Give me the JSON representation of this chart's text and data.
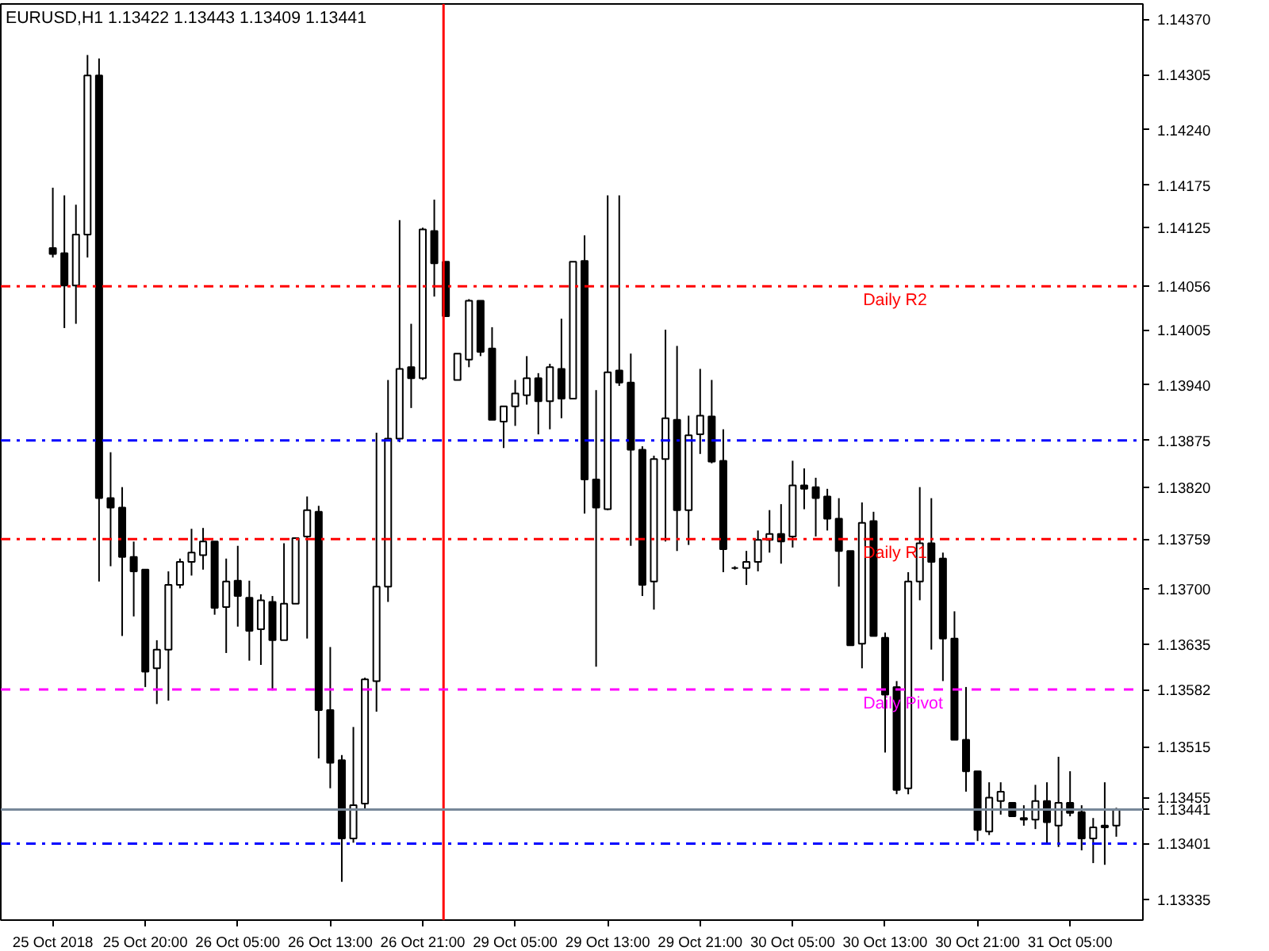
{
  "chart_data": {
    "type": "candlestick",
    "title": "EURUSD,H1  1.13422 1.13443 1.13409 1.13441",
    "categories": [
      "25 Oct 2018",
      null,
      null,
      null,
      null,
      null,
      null,
      null,
      "25 Oct 20:00",
      null,
      null,
      null,
      null,
      null,
      null,
      null,
      "26 Oct 05:00",
      null,
      null,
      null,
      null,
      null,
      null,
      null,
      "26 Oct 13:00",
      null,
      null,
      null,
      null,
      null,
      null,
      null,
      "26 Oct 21:00",
      null,
      null,
      null,
      null,
      null,
      null,
      null,
      "29 Oct 05:00",
      null,
      null,
      null,
      null,
      null,
      null,
      null,
      "29 Oct 13:00",
      null,
      null,
      null,
      null,
      null,
      null,
      null,
      "29 Oct 21:00",
      null,
      null,
      null,
      null,
      null,
      null,
      null,
      "30 Oct 05:00",
      null,
      null,
      null,
      null,
      null,
      null,
      null,
      "30 Oct 13:00",
      null,
      null,
      null,
      null,
      null,
      null,
      null,
      "30 Oct 21:00",
      null,
      null,
      null,
      null,
      null,
      null,
      null,
      "31 Oct 05:00",
      null,
      null,
      null,
      null
    ],
    "ohlc": [
      [
        1.14101,
        1.14172,
        1.1409,
        1.14094
      ],
      [
        1.14095,
        1.14163,
        1.14007,
        1.14057
      ],
      [
        1.14057,
        1.14152,
        1.14012,
        1.14117
      ],
      [
        1.14117,
        1.14328,
        1.1409,
        1.14304
      ],
      [
        1.14304,
        1.14324,
        1.13709,
        1.13807
      ],
      [
        1.13807,
        1.13861,
        1.13727,
        1.13796
      ],
      [
        1.13796,
        1.1382,
        1.13645,
        1.13738
      ],
      [
        1.13738,
        1.13756,
        1.13668,
        1.13721
      ],
      [
        1.13723,
        1.13723,
        1.13585,
        1.13603
      ],
      [
        1.13607,
        1.1364,
        1.13565,
        1.13629
      ],
      [
        1.13629,
        1.13721,
        1.13569,
        1.13705
      ],
      [
        1.13705,
        1.13736,
        1.13701,
        1.13732
      ],
      [
        1.13732,
        1.13771,
        1.13716,
        1.13743
      ],
      [
        1.1374,
        1.13772,
        1.13723,
        1.13756
      ],
      [
        1.13756,
        1.13756,
        1.1367,
        1.13678
      ],
      [
        1.13679,
        1.13736,
        1.13625,
        1.13709
      ],
      [
        1.1371,
        1.13751,
        1.13656,
        1.13692
      ],
      [
        1.1369,
        1.1371,
        1.13616,
        1.13651
      ],
      [
        1.13653,
        1.13694,
        1.13611,
        1.13687
      ],
      [
        1.13685,
        1.13692,
        1.13581,
        1.1364
      ],
      [
        1.1364,
        1.13754,
        1.1364,
        1.13683
      ],
      [
        1.13683,
        1.1376,
        1.13683,
        1.1376
      ],
      [
        1.13762,
        1.13809,
        1.13642,
        1.13793
      ],
      [
        1.13791,
        1.13798,
        1.13501,
        1.13558
      ],
      [
        1.13558,
        1.13632,
        1.13466,
        1.13496
      ],
      [
        1.13499,
        1.13505,
        1.13356,
        1.13407
      ],
      [
        1.13407,
        1.13538,
        1.13402,
        1.13446
      ],
      [
        1.13448,
        1.13596,
        1.13442,
        1.13594
      ],
      [
        1.13592,
        1.13884,
        1.13556,
        1.13703
      ],
      [
        1.13703,
        1.13946,
        1.13685,
        1.13877
      ],
      [
        1.13877,
        1.14134,
        1.13873,
        1.13959
      ],
      [
        1.13961,
        1.14012,
        1.13913,
        1.13948
      ],
      [
        1.13948,
        1.14125,
        1.13946,
        1.14123
      ],
      [
        1.14121,
        1.14158,
        1.14044,
        1.14083
      ],
      [
        1.14085,
        1.14085,
        1.14021,
        1.14021
      ],
      [
        1.13946,
        1.13977,
        1.13946,
        1.13977
      ],
      [
        1.1397,
        1.14041,
        1.13961,
        1.14039
      ],
      [
        1.14039,
        1.14039,
        1.13974,
        1.13979
      ],
      [
        1.13983,
        1.14008,
        1.13899,
        1.13899
      ],
      [
        1.13897,
        1.13915,
        1.13866,
        1.13915
      ],
      [
        1.13915,
        1.13946,
        1.13892,
        1.1393
      ],
      [
        1.13928,
        1.13974,
        1.13917,
        1.13948
      ],
      [
        1.13948,
        1.13954,
        1.13882,
        1.13921
      ],
      [
        1.13921,
        1.13965,
        1.13888,
        1.13961
      ],
      [
        1.13959,
        1.14018,
        1.13901,
        1.13924
      ],
      [
        1.13924,
        1.14085,
        1.13924,
        1.14085
      ],
      [
        1.14086,
        1.14116,
        1.13789,
        1.13829
      ],
      [
        1.13829,
        1.13934,
        1.13609,
        1.13796
      ],
      [
        1.13794,
        1.14163,
        1.13793,
        1.13955
      ],
      [
        1.13957,
        1.14163,
        1.13939,
        1.13943
      ],
      [
        1.13943,
        1.13977,
        1.13751,
        1.13864
      ],
      [
        1.13864,
        1.13868,
        1.13692,
        1.13705
      ],
      [
        1.13709,
        1.13857,
        1.13676,
        1.13853
      ],
      [
        1.13853,
        1.14005,
        1.13756,
        1.13901
      ],
      [
        1.13899,
        1.13986,
        1.13745,
        1.13793
      ],
      [
        1.13793,
        1.13904,
        1.13752,
        1.13881
      ],
      [
        1.13882,
        1.13959,
        1.13859,
        1.13904
      ],
      [
        1.13903,
        1.13946,
        1.13848,
        1.1385
      ],
      [
        1.13851,
        1.13888,
        1.1372,
        1.13747
      ],
      [
        1.13725,
        1.13727,
        1.13723,
        1.13725
      ],
      [
        1.13725,
        1.13745,
        1.13705,
        1.13732
      ],
      [
        1.13732,
        1.13769,
        1.13721,
        1.13758
      ],
      [
        1.13758,
        1.13793,
        1.13743,
        1.13765
      ],
      [
        1.13765,
        1.138,
        1.1373,
        1.13756
      ],
      [
        1.13762,
        1.13851,
        1.13749,
        1.13822
      ],
      [
        1.13822,
        1.13842,
        1.13794,
        1.13818
      ],
      [
        1.1382,
        1.13831,
        1.13762,
        1.13807
      ],
      [
        1.13809,
        1.13818,
        1.13769,
        1.13783
      ],
      [
        1.13783,
        1.13807,
        1.13703,
        1.13745
      ],
      [
        1.13745,
        1.13745,
        1.13634,
        1.13634
      ],
      [
        1.13636,
        1.13802,
        1.13607,
        1.13778
      ],
      [
        1.1378,
        1.13791,
        1.13645,
        1.13645
      ],
      [
        1.13643,
        1.13649,
        1.13508,
        1.13576
      ],
      [
        1.13585,
        1.13592,
        1.13459,
        1.13464
      ],
      [
        1.13466,
        1.1372,
        1.13459,
        1.13709
      ],
      [
        1.13709,
        1.1382,
        1.13687,
        1.13754
      ],
      [
        1.13754,
        1.13807,
        1.13629,
        1.13732
      ],
      [
        1.13736,
        1.13743,
        1.13592,
        1.13642
      ],
      [
        1.13642,
        1.13674,
        1.13523,
        1.13523
      ],
      [
        1.13523,
        1.13585,
        1.13462,
        1.13486
      ],
      [
        1.13486,
        1.13486,
        1.13404,
        1.13417
      ],
      [
        1.13415,
        1.13473,
        1.13411,
        1.13455
      ],
      [
        1.13451,
        1.13473,
        1.13435,
        1.13462
      ],
      [
        1.13449,
        1.13449,
        1.13433,
        1.13433
      ],
      [
        1.13431,
        1.13446,
        1.13422,
        1.13429
      ],
      [
        1.13429,
        1.1347,
        1.13418,
        1.13451
      ],
      [
        1.13451,
        1.13473,
        1.13402,
        1.13426
      ],
      [
        1.13422,
        1.13503,
        1.13397,
        1.13449
      ],
      [
        1.13449,
        1.13486,
        1.13433,
        1.13437
      ],
      [
        1.13438,
        1.13446,
        1.13393,
        1.13407
      ],
      [
        1.13407,
        1.13431,
        1.13378,
        1.1342
      ],
      [
        1.13422,
        1.13473,
        1.13376,
        1.1342
      ],
      [
        1.13422,
        1.13443,
        1.13409,
        1.13441
      ]
    ],
    "ylim": [
      1.13311,
      1.14388
    ],
    "yticks": [
      {
        "value": 1.1437,
        "label": "1.14370"
      },
      1.14305,
      {
        "value": 1.1424,
        "label": "1.14240"
      },
      1.14175,
      1.14125,
      {
        "value": 1.14056,
        "label": "1.14056"
      },
      1.14005,
      {
        "value": 1.1394,
        "label": "1.13940"
      },
      {
        "value": 1.13875,
        "label": "1.13875"
      },
      {
        "value": 1.1382,
        "label": "1.13820"
      },
      {
        "value": 1.13759,
        "label": "1.13759"
      },
      {
        "value": 1.137,
        "label": "1.13700"
      },
      1.13635,
      {
        "value": 1.13582,
        "label": "1.13582"
      },
      1.13515,
      1.13455,
      {
        "value": 1.13441,
        "label": "1.13441"
      },
      {
        "value": 1.13401,
        "label": "1.13401"
      },
      1.13335
    ],
    "grid": false,
    "ref_lines": [
      {
        "axis": "y",
        "value": 1.14056,
        "label": "Daily R2",
        "color": "#ff0000",
        "line_style": "dashdot"
      },
      {
        "axis": "y",
        "value": 1.13875,
        "color": "#0000ff",
        "line_style": "dashdot"
      },
      {
        "axis": "y",
        "value": 1.13759,
        "label": "Daily R1",
        "color": "#ff0000",
        "line_style": "dashdot"
      },
      {
        "axis": "y",
        "value": 1.13582,
        "label": "Daily Pivot",
        "color": "#ff00ff",
        "line_style": "dashed"
      },
      {
        "axis": "y",
        "value": 1.13441,
        "color": "#778899",
        "line_style": "solid"
      },
      {
        "axis": "y",
        "value": 1.13401,
        "color": "#0000ff",
        "line_style": "dashdot"
      }
    ]
  }
}
